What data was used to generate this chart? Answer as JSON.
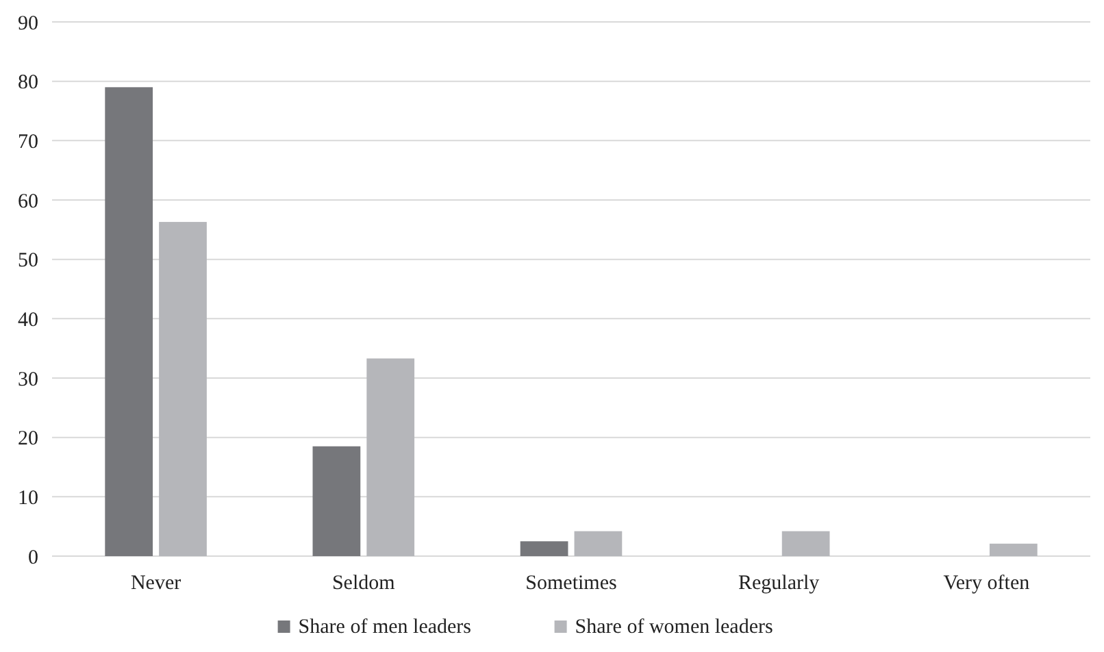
{
  "chart_data": {
    "type": "bar",
    "categories": [
      "Never",
      "Seldom",
      "Sometimes",
      "Regularly",
      "Very often"
    ],
    "series": [
      {
        "name": "Share of men leaders",
        "color": "#76777b",
        "values": [
          79,
          18.5,
          2.5,
          0,
          0
        ]
      },
      {
        "name": "Share of women leaders",
        "color": "#b5b6ba",
        "values": [
          56.3,
          33.3,
          4.2,
          4.2,
          2.1
        ]
      }
    ],
    "ylim": [
      0,
      90
    ],
    "yticks": [
      0,
      10,
      20,
      30,
      40,
      50,
      60,
      70,
      80,
      90
    ],
    "grid": "y",
    "legend": "bottom"
  }
}
